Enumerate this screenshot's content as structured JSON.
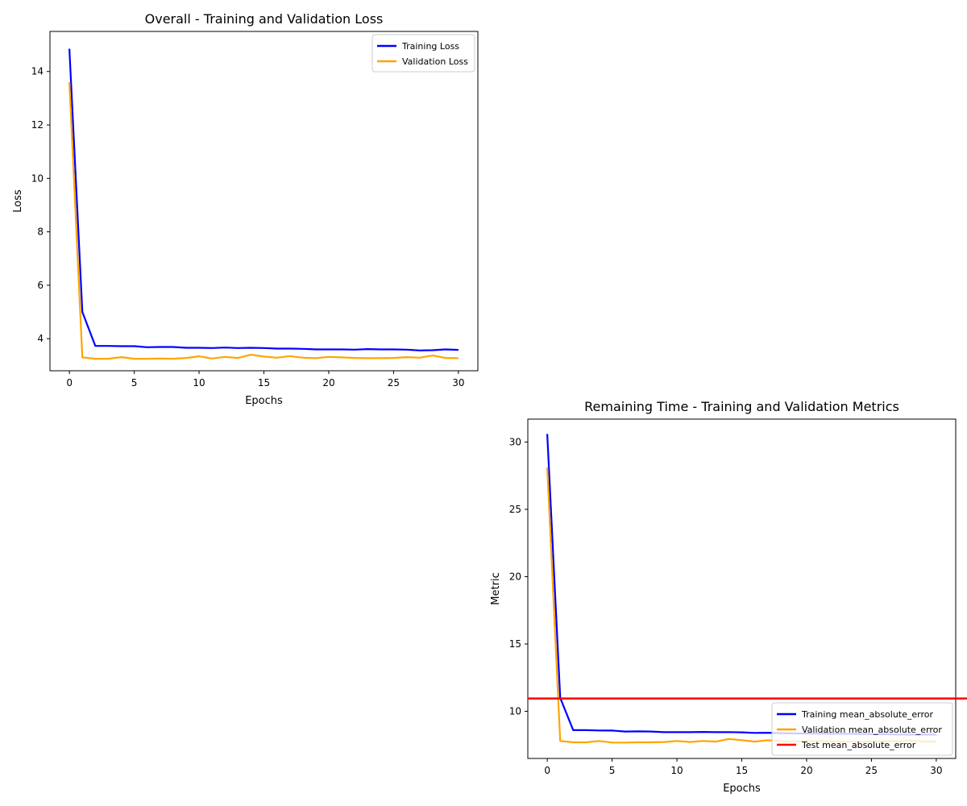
{
  "chart_data": [
    {
      "type": "line",
      "title": "Overall - Training and Validation Loss",
      "xlabel": "Epochs",
      "ylabel": "Loss",
      "xlim": [
        -1.5,
        31.5
      ],
      "ylim": [
        2.8,
        15.5
      ],
      "xticks": [
        0,
        5,
        10,
        15,
        20,
        25,
        30
      ],
      "yticks": [
        4,
        6,
        8,
        10,
        12,
        14
      ],
      "x": [
        0,
        1,
        2,
        3,
        4,
        5,
        6,
        7,
        8,
        9,
        10,
        11,
        12,
        13,
        14,
        15,
        16,
        17,
        18,
        19,
        20,
        21,
        22,
        23,
        24,
        25,
        26,
        27,
        28,
        29,
        30
      ],
      "series": [
        {
          "name": "Training Loss",
          "color": "#0000ff",
          "values": [
            14.85,
            5.0,
            3.73,
            3.73,
            3.72,
            3.72,
            3.68,
            3.69,
            3.69,
            3.66,
            3.66,
            3.65,
            3.67,
            3.65,
            3.66,
            3.65,
            3.63,
            3.63,
            3.62,
            3.6,
            3.6,
            3.6,
            3.59,
            3.61,
            3.6,
            3.6,
            3.59,
            3.56,
            3.57,
            3.6,
            3.58
          ]
        },
        {
          "name": "Validation Loss",
          "color": "#ffa500",
          "values": [
            13.6,
            3.3,
            3.25,
            3.25,
            3.31,
            3.25,
            3.25,
            3.26,
            3.25,
            3.28,
            3.34,
            3.26,
            3.32,
            3.28,
            3.4,
            3.33,
            3.29,
            3.35,
            3.29,
            3.27,
            3.32,
            3.3,
            3.28,
            3.27,
            3.27,
            3.28,
            3.31,
            3.29,
            3.37,
            3.28,
            3.27
          ]
        }
      ],
      "legend": "upper-right"
    },
    {
      "type": "line",
      "title": "Remaining Time - Training and Validation Metrics",
      "xlabel": "Epochs",
      "ylabel": "Metric",
      "xlim": [
        -1.5,
        31.5
      ],
      "ylim": [
        6.5,
        31.7
      ],
      "xticks": [
        0,
        5,
        10,
        15,
        20,
        25,
        30
      ],
      "yticks": [
        10,
        15,
        20,
        25,
        30
      ],
      "x": [
        0,
        1,
        2,
        3,
        4,
        5,
        6,
        7,
        8,
        9,
        10,
        11,
        12,
        13,
        14,
        15,
        16,
        17,
        18,
        19,
        20,
        21,
        22,
        23,
        24,
        25,
        26,
        27,
        28,
        29,
        30
      ],
      "series": [
        {
          "name": "Training mean_absolute_error",
          "color": "#0000ff",
          "values": [
            30.6,
            11.0,
            8.6,
            8.6,
            8.58,
            8.57,
            8.5,
            8.51,
            8.5,
            8.45,
            8.45,
            8.45,
            8.47,
            8.45,
            8.46,
            8.44,
            8.4,
            8.41,
            8.38,
            8.36,
            8.35,
            8.34,
            8.33,
            8.33,
            8.32,
            8.31,
            8.3,
            8.28,
            8.27,
            8.27,
            8.27
          ]
        },
        {
          "name": "Validation mean_absolute_error",
          "color": "#ffa500",
          "values": [
            28.1,
            7.8,
            7.7,
            7.7,
            7.8,
            7.68,
            7.68,
            7.7,
            7.7,
            7.72,
            7.8,
            7.72,
            7.8,
            7.75,
            7.95,
            7.85,
            7.75,
            7.85,
            7.78,
            7.75,
            7.8,
            7.78,
            7.75,
            7.74,
            7.74,
            7.75,
            7.78,
            7.76,
            7.82,
            7.75,
            7.75
          ]
        }
      ],
      "hlines": [
        {
          "name": "Test mean_absolute_error",
          "color": "#ff0000",
          "value": 10.95
        }
      ],
      "legend": "lower-right"
    }
  ]
}
